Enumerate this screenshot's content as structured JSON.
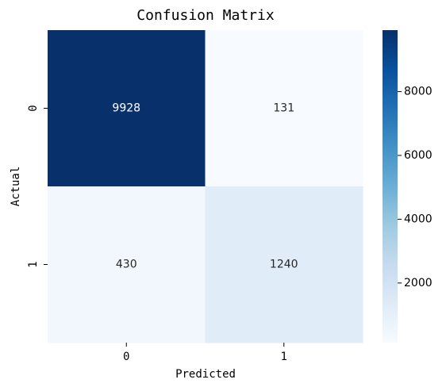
{
  "chart_data": {
    "type": "heatmap",
    "title": "Confusion Matrix",
    "xlabel": "Predicted",
    "ylabel": "Actual",
    "x_categories": [
      "0",
      "1"
    ],
    "y_categories": [
      "0",
      "1"
    ],
    "values": [
      [
        9928,
        131
      ],
      [
        430,
        1240
      ]
    ],
    "clim": [
      131,
      9928
    ],
    "colorbar_ticks": [
      2000,
      4000,
      6000,
      8000
    ],
    "colormap": [
      "#f7fbff",
      "#deebf7",
      "#c6dbef",
      "#9ecae1",
      "#6baed6",
      "#4292c6",
      "#2171b5",
      "#08519c",
      "#08306b"
    ]
  }
}
